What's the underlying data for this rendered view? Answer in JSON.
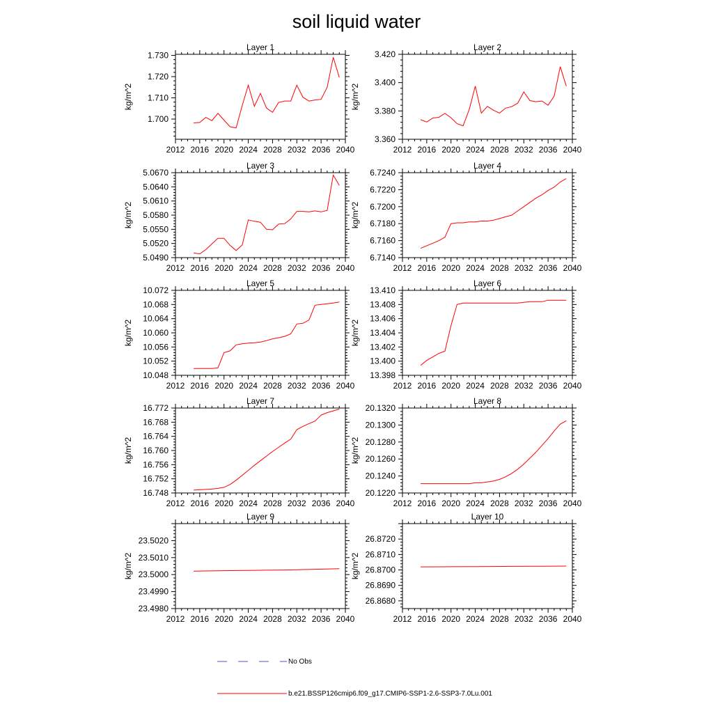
{
  "title": "soil liquid water",
  "legend": {
    "entries": [
      {
        "label": "No Obs",
        "color": "#4455cc",
        "style": "dashed"
      },
      {
        "label": "b.e21.BSSP126cmip6.f09_g17.CMIP6-SSP1-2.6-SSP3-7.0Lu.001",
        "color": "#ff0000",
        "style": "solid"
      }
    ]
  },
  "chart_data": [
    {
      "type": "line",
      "title": "Layer 1",
      "ylabel": "kg/m^2",
      "xlim": [
        2012,
        2040
      ],
      "xticks": [
        "2012",
        "2016",
        "2020",
        "2024",
        "2028",
        "2032",
        "2036",
        "2040"
      ],
      "ylim": [
        1.6905,
        1.7305
      ],
      "yticks": [
        "1.700",
        "1.710",
        "1.720",
        "1.730"
      ],
      "x": [
        2015,
        2016,
        2017,
        2018,
        2019,
        2020,
        2021,
        2022,
        2023,
        2024,
        2025,
        2026,
        2027,
        2028,
        2029,
        2030,
        2031,
        2032,
        2033,
        2034,
        2035,
        2036,
        2037,
        2038,
        2039
      ],
      "series": [
        {
          "name": "b.e21.BSSP126cmip6.f09_g17.CMIP6-SSP1-2.6-SSP3-7.0Lu.001",
          "color": "#ff0000",
          "values": [
            1.6982,
            1.6984,
            1.7008,
            1.6993,
            1.7027,
            1.6995,
            1.6964,
            1.6958,
            1.7064,
            1.716,
            1.706,
            1.7121,
            1.7052,
            1.7032,
            1.7078,
            1.7085,
            1.7085,
            1.716,
            1.7103,
            1.7085,
            1.709,
            1.7093,
            1.715,
            1.7291,
            1.7196
          ]
        }
      ]
    },
    {
      "type": "line",
      "title": "Layer 2",
      "ylabel": "kg/m^2",
      "xlim": [
        2012,
        2040
      ],
      "xticks": [
        "2012",
        "2016",
        "2020",
        "2024",
        "2028",
        "2032",
        "2036",
        "2040"
      ],
      "ylim": [
        3.36,
        3.42
      ],
      "yticks": [
        "3.360",
        "3.380",
        "3.400",
        "3.420"
      ],
      "x": [
        2015,
        2016,
        2017,
        2018,
        2019,
        2020,
        2021,
        2022,
        2023,
        2024,
        2025,
        2026,
        2027,
        2028,
        2029,
        2030,
        2031,
        2032,
        2033,
        2034,
        2035,
        2036,
        2037,
        2038,
        2039
      ],
      "series": [
        {
          "name": "b.e21.BSSP126cmip6.f09_g17.CMIP6-SSP1-2.6-SSP3-7.0Lu.001",
          "color": "#ff0000",
          "values": [
            3.3738,
            3.3722,
            3.375,
            3.3755,
            3.3783,
            3.3752,
            3.371,
            3.3695,
            3.381,
            3.3975,
            3.3785,
            3.3832,
            3.3805,
            3.3785,
            3.382,
            3.383,
            3.3855,
            3.3935,
            3.3873,
            3.3865,
            3.387,
            3.384,
            3.3905,
            3.4113,
            3.3975
          ]
        }
      ]
    },
    {
      "type": "line",
      "title": "Layer 3",
      "ylabel": "kg/m^2",
      "xlim": [
        2012,
        2040
      ],
      "xticks": [
        "2012",
        "2016",
        "2020",
        "2024",
        "2028",
        "2032",
        "2036",
        "2040"
      ],
      "ylim": [
        5.049,
        5.067
      ],
      "yticks": [
        "5.0490",
        "5.0520",
        "5.0550",
        "5.0580",
        "5.0610",
        "5.0640",
        "5.0670"
      ],
      "x": [
        2015,
        2016,
        2017,
        2018,
        2019,
        2020,
        2021,
        2022,
        2023,
        2024,
        2025,
        2026,
        2027,
        2028,
        2029,
        2030,
        2031,
        2032,
        2033,
        2034,
        2035,
        2036,
        2037,
        2038,
        2039
      ],
      "series": [
        {
          "name": "b.e21.BSSP126cmip6.f09_g17.CMIP6-SSP1-2.6-SSP3-7.0Lu.001",
          "color": "#ff0000",
          "values": [
            5.05,
            5.0498,
            5.0507,
            5.0519,
            5.0531,
            5.0531,
            5.0516,
            5.0505,
            5.0517,
            5.057,
            5.0567,
            5.0565,
            5.055,
            5.0549,
            5.0561,
            5.0562,
            5.0572,
            5.0588,
            5.0588,
            5.0587,
            5.0589,
            5.0587,
            5.059,
            5.0665,
            5.0643
          ]
        }
      ]
    },
    {
      "type": "line",
      "title": "Layer 4",
      "ylabel": "kg/m^2",
      "xlim": [
        2012,
        2040
      ],
      "xticks": [
        "2012",
        "2016",
        "2020",
        "2024",
        "2028",
        "2032",
        "2036",
        "2040"
      ],
      "ylim": [
        6.714,
        6.724
      ],
      "yticks": [
        "6.7140",
        "6.7160",
        "6.7180",
        "6.7200",
        "6.7220",
        "6.7240"
      ],
      "x": [
        2015,
        2016,
        2017,
        2018,
        2019,
        2020,
        2021,
        2022,
        2023,
        2024,
        2025,
        2026,
        2027,
        2028,
        2029,
        2030,
        2031,
        2032,
        2033,
        2034,
        2035,
        2036,
        2037,
        2038,
        2039
      ],
      "series": [
        {
          "name": "b.e21.BSSP126cmip6.f09_g17.CMIP6-SSP1-2.6-SSP3-7.0Lu.001",
          "color": "#ff0000",
          "values": [
            6.7151,
            6.7154,
            6.7157,
            6.716,
            6.7164,
            6.718,
            6.7181,
            6.7181,
            6.7182,
            6.7182,
            6.7183,
            6.7183,
            6.7184,
            6.7186,
            6.7188,
            6.719,
            6.7195,
            6.72,
            6.7205,
            6.721,
            6.7214,
            6.7219,
            6.7223,
            6.7229,
            6.7233
          ]
        }
      ]
    },
    {
      "type": "line",
      "title": "Layer 5",
      "ylabel": "kg/m^2",
      "xlim": [
        2012,
        2040
      ],
      "xticks": [
        "2012",
        "2016",
        "2020",
        "2024",
        "2028",
        "2032",
        "2036",
        "2040"
      ],
      "ylim": [
        10.048,
        10.072
      ],
      "yticks": [
        "10.048",
        "10.052",
        "10.056",
        "10.060",
        "10.064",
        "10.068",
        "10.072"
      ],
      "x": [
        2015,
        2016,
        2017,
        2018,
        2019,
        2020,
        2021,
        2022,
        2023,
        2024,
        2025,
        2026,
        2027,
        2028,
        2029,
        2030,
        2031,
        2032,
        2033,
        2034,
        2035,
        2036,
        2037,
        2038,
        2039
      ],
      "series": [
        {
          "name": "b.e21.BSSP126cmip6.f09_g17.CMIP6-SSP1-2.6-SSP3-7.0Lu.001",
          "color": "#ff0000",
          "values": [
            10.0499,
            10.0499,
            10.0499,
            10.0499,
            10.0501,
            10.0544,
            10.0549,
            10.0566,
            10.0569,
            10.0571,
            10.0572,
            10.0574,
            10.0578,
            10.0583,
            10.0586,
            10.059,
            10.0597,
            10.0625,
            10.0627,
            10.0636,
            10.0678,
            10.068,
            10.0682,
            10.0684,
            10.0687
          ]
        }
      ]
    },
    {
      "type": "line",
      "title": "Layer 6",
      "ylabel": "kg/m^2",
      "xlim": [
        2012,
        2040
      ],
      "xticks": [
        "2012",
        "2016",
        "2020",
        "2024",
        "2028",
        "2032",
        "2036",
        "2040"
      ],
      "ylim": [
        13.398,
        13.41
      ],
      "yticks": [
        "13.398",
        "13.400",
        "13.402",
        "13.404",
        "13.406",
        "13.408",
        "13.410"
      ],
      "x": [
        2015,
        2016,
        2017,
        2018,
        2019,
        2020,
        2021,
        2022,
        2023,
        2024,
        2025,
        2026,
        2027,
        2028,
        2029,
        2030,
        2031,
        2032,
        2033,
        2034,
        2035,
        2036,
        2037,
        2038,
        2039
      ],
      "series": [
        {
          "name": "b.e21.BSSP126cmip6.f09_g17.CMIP6-SSP1-2.6-SSP3-7.0Lu.001",
          "color": "#ff0000",
          "values": [
            13.3994,
            13.4001,
            13.4006,
            13.4011,
            13.4014,
            13.405,
            13.408,
            13.4082,
            13.4082,
            13.4082,
            13.4082,
            13.4082,
            13.4082,
            13.4082,
            13.4082,
            13.4082,
            13.4082,
            13.4083,
            13.4084,
            13.4084,
            13.4084,
            13.4086,
            13.4086,
            13.4086,
            13.4086
          ]
        }
      ]
    },
    {
      "type": "line",
      "title": "Layer 7",
      "ylabel": "kg/m^2",
      "xlim": [
        2012,
        2040
      ],
      "xticks": [
        "2012",
        "2016",
        "2020",
        "2024",
        "2028",
        "2032",
        "2036",
        "2040"
      ],
      "ylim": [
        16.748,
        16.772
      ],
      "yticks": [
        "16.748",
        "16.752",
        "16.756",
        "16.760",
        "16.764",
        "16.768",
        "16.772"
      ],
      "x": [
        2015,
        2016,
        2017,
        2018,
        2019,
        2020,
        2021,
        2022,
        2023,
        2024,
        2025,
        2026,
        2027,
        2028,
        2029,
        2030,
        2031,
        2032,
        2033,
        2034,
        2035,
        2036,
        2037,
        2038,
        2039
      ],
      "series": [
        {
          "name": "b.e21.BSSP126cmip6.f09_g17.CMIP6-SSP1-2.6-SSP3-7.0Lu.001",
          "color": "#ff0000",
          "values": [
            16.7488,
            16.7489,
            16.749,
            16.7491,
            16.7493,
            16.7496,
            16.7504,
            16.7516,
            16.753,
            16.7544,
            16.7558,
            16.7571,
            16.7584,
            16.7597,
            16.7609,
            16.7621,
            16.7632,
            16.7659,
            16.7668,
            16.7676,
            16.7683,
            16.77,
            16.7707,
            16.7712,
            16.7717
          ]
        }
      ]
    },
    {
      "type": "line",
      "title": "Layer 8",
      "ylabel": "kg/m^2",
      "xlim": [
        2012,
        2040
      ],
      "xticks": [
        "2012",
        "2016",
        "2020",
        "2024",
        "2028",
        "2032",
        "2036",
        "2040"
      ],
      "ylim": [
        20.122,
        20.132
      ],
      "yticks": [
        "20.1220",
        "20.1240",
        "20.1260",
        "20.1280",
        "20.1300",
        "20.1320"
      ],
      "x": [
        2015,
        2016,
        2017,
        2018,
        2019,
        2020,
        2021,
        2022,
        2023,
        2024,
        2025,
        2026,
        2027,
        2028,
        2029,
        2030,
        2031,
        2032,
        2033,
        2034,
        2035,
        2036,
        2037,
        2038,
        2039
      ],
      "series": [
        {
          "name": "b.e21.BSSP126cmip6.f09_g17.CMIP6-SSP1-2.6-SSP3-7.0Lu.001",
          "color": "#ff0000",
          "values": [
            20.1231,
            20.1231,
            20.1231,
            20.1231,
            20.1231,
            20.1231,
            20.1231,
            20.1231,
            20.1231,
            20.1232,
            20.1232,
            20.1233,
            20.1234,
            20.1236,
            20.1239,
            20.1243,
            20.1248,
            20.1254,
            20.1261,
            20.1268,
            20.1276,
            20.1284,
            20.1293,
            20.1301,
            20.1305
          ]
        }
      ]
    },
    {
      "type": "line",
      "title": "Layer 9",
      "ylabel": "kg/m^2",
      "xlim": [
        2012,
        2040
      ],
      "xticks": [
        "2012",
        "2016",
        "2020",
        "2024",
        "2028",
        "2032",
        "2036",
        "2040"
      ],
      "ylim": [
        23.498,
        23.503
      ],
      "yticks": [
        "23.4980",
        "23.4990",
        "23.5000",
        "23.5010",
        "23.5020"
      ],
      "x": [
        2015,
        2020,
        2025,
        2030,
        2035,
        2039
      ],
      "series": [
        {
          "name": "b.e21.BSSP126cmip6.f09_g17.CMIP6-SSP1-2.6-SSP3-7.0Lu.001",
          "color": "#ff0000",
          "values": [
            23.5002,
            23.50023,
            23.50025,
            23.50027,
            23.50031,
            23.50035
          ]
        }
      ]
    },
    {
      "type": "line",
      "title": "Layer 10",
      "ylabel": "kg/m^2",
      "xlim": [
        2012,
        2040
      ],
      "xticks": [
        "2012",
        "2016",
        "2020",
        "2024",
        "2028",
        "2032",
        "2036",
        "2040"
      ],
      "ylim": [
        26.8675,
        26.873
      ],
      "yticks": [
        "26.8680",
        "26.8690",
        "26.8700",
        "26.8710",
        "26.8720"
      ],
      "x": [
        2015,
        2020,
        2025,
        2030,
        2035,
        2039
      ],
      "series": [
        {
          "name": "b.e21.BSSP126cmip6.f09_g17.CMIP6-SSP1-2.6-SSP3-7.0Lu.001",
          "color": "#ff0000",
          "values": [
            26.8702,
            26.87021,
            26.87022,
            26.87023,
            26.87024,
            26.87025
          ]
        }
      ]
    }
  ]
}
